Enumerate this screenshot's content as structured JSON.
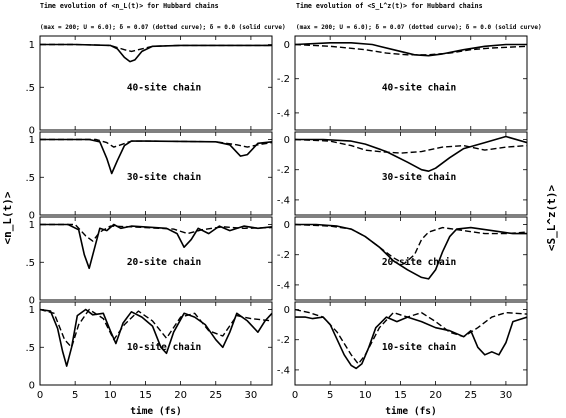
{
  "figure": {
    "left_title": "Time evolution of <n_L(t)> for Hubbard chains",
    "left_subtitle": "(max = 200; U = 6.0); δ = 0.07 (dotted curve); δ = 0.0 (solid curve)",
    "right_title": "Time evolution of <S_L^z(t)> for Hubbard chains",
    "right_subtitle": "(max = 200; U = 6.0); δ = 0.07 (dotted curve); δ = 0.0 (solid curve)",
    "left_ylabel": "<n_L(t)>",
    "right_ylabel": "<S_L^z(t)>",
    "xlabel": "time (fs)"
  },
  "chart_data": [
    {
      "type": "line",
      "column": "left",
      "title": "Time evolution of <n_L(t)> for Hubbard chains",
      "xlabel": "time (fs)",
      "ylabel": "<n_L(t)>",
      "xlim": [
        0,
        33
      ],
      "xticks": [
        0,
        5,
        10,
        15,
        20,
        25,
        30
      ],
      "ylim": [
        0,
        1.1
      ],
      "yticks": [
        0,
        0.5,
        1
      ],
      "panels": [
        {
          "label": "40-site chain",
          "series": [
            {
              "name": "δ = 0.0 (solid curve)",
              "style": "solid",
              "x": [
                0,
                5,
                10,
                11,
                12,
                12.8,
                13.5,
                14.5,
                16,
                20,
                33
              ],
              "y": [
                1.0,
                1.0,
                0.99,
                0.95,
                0.85,
                0.8,
                0.82,
                0.92,
                0.98,
                0.99,
                0.99
              ]
            },
            {
              "name": "δ = 0.07 (dotted curve)",
              "style": "dashed",
              "x": [
                0,
                5,
                10,
                12,
                13,
                14,
                16,
                20,
                33
              ],
              "y": [
                1.0,
                1.0,
                0.99,
                0.94,
                0.92,
                0.94,
                0.98,
                0.99,
                0.99
              ]
            }
          ]
        },
        {
          "label": "30-site chain",
          "series": [
            {
              "name": "δ = 0.0 (solid curve)",
              "style": "solid",
              "x": [
                0,
                7,
                8.5,
                9.5,
                10.2,
                11,
                12,
                13,
                15,
                25,
                27,
                28.5,
                29.5,
                31,
                33
              ],
              "y": [
                1.0,
                1.0,
                0.97,
                0.75,
                0.55,
                0.72,
                0.92,
                0.98,
                0.98,
                0.97,
                0.93,
                0.78,
                0.8,
                0.95,
                0.97
              ]
            },
            {
              "name": "δ = 0.07 (dotted curve)",
              "style": "dashed",
              "x": [
                0,
                8,
                9.5,
                10.5,
                11.5,
                13,
                16,
                25,
                28,
                29.5,
                31,
                33
              ],
              "y": [
                1.0,
                1.0,
                0.96,
                0.9,
                0.93,
                0.98,
                0.98,
                0.97,
                0.93,
                0.9,
                0.93,
                0.96
              ]
            }
          ]
        },
        {
          "label": "20-site chain",
          "series": [
            {
              "name": "δ = 0.0 (solid curve)",
              "style": "solid",
              "x": [
                0,
                4,
                5.5,
                6.3,
                7,
                7.8,
                8.5,
                9.5,
                10.5,
                11.5,
                13,
                18,
                19.5,
                20.5,
                21.5,
                22.5,
                24,
                25.5,
                27,
                29,
                31,
                33
              ],
              "y": [
                1.0,
                1.0,
                0.93,
                0.6,
                0.42,
                0.7,
                0.95,
                0.92,
                1.0,
                0.95,
                0.98,
                0.95,
                0.88,
                0.7,
                0.8,
                0.95,
                0.88,
                0.98,
                0.92,
                0.98,
                0.95,
                0.97
              ]
            },
            {
              "name": "δ = 0.07 (dotted curve)",
              "style": "dashed",
              "x": [
                0,
                5,
                6.5,
                7.5,
                8.5,
                10,
                13,
                19,
                21,
                23,
                26,
                29,
                33
              ],
              "y": [
                1.0,
                1.0,
                0.85,
                0.78,
                0.9,
                0.98,
                0.97,
                0.94,
                0.88,
                0.93,
                0.97,
                0.95,
                0.96
              ]
            }
          ]
        },
        {
          "label": "10-site chain",
          "series": [
            {
              "name": "δ = 0.0 (solid curve)",
              "style": "solid",
              "x": [
                0,
                1.5,
                2.5,
                3.2,
                3.8,
                4.5,
                5.3,
                6.5,
                7.5,
                9,
                10,
                10.8,
                11.8,
                13,
                14.5,
                16,
                17.2,
                18,
                19,
                20.5,
                22,
                23.5,
                25,
                26,
                27,
                28,
                29.5,
                31,
                32,
                33
              ],
              "y": [
                1.0,
                0.98,
                0.75,
                0.45,
                0.25,
                0.5,
                0.92,
                1.0,
                0.93,
                0.95,
                0.72,
                0.55,
                0.82,
                0.97,
                0.9,
                0.78,
                0.5,
                0.42,
                0.7,
                0.95,
                0.9,
                0.8,
                0.6,
                0.5,
                0.7,
                0.95,
                0.85,
                0.7,
                0.85,
                0.95
              ]
            },
            {
              "name": "δ = 0.07 (dotted curve)",
              "style": "dashed",
              "x": [
                0,
                2,
                3.5,
                4.5,
                5.5,
                7,
                9,
                10.5,
                12,
                14,
                16,
                18,
                20,
                22,
                24,
                26,
                28,
                30,
                33
              ],
              "y": [
                1.0,
                0.95,
                0.6,
                0.5,
                0.8,
                1.0,
                0.88,
                0.6,
                0.8,
                0.98,
                0.85,
                0.62,
                0.9,
                0.95,
                0.72,
                0.65,
                0.92,
                0.88,
                0.85
              ]
            }
          ]
        }
      ]
    },
    {
      "type": "line",
      "column": "right",
      "title": "Time evolution of <S_L^z(t)> for Hubbard chains",
      "xlabel": "time (fs)",
      "ylabel": "<S_L^z(t)>",
      "xlim": [
        0,
        33
      ],
      "xticks": [
        0,
        5,
        10,
        15,
        20,
        25,
        30
      ],
      "ylim": [
        -0.5,
        0.05
      ],
      "yticks": [
        -0.4,
        -0.2,
        0
      ],
      "panels": [
        {
          "label": "40-site chain",
          "series": [
            {
              "name": "δ = 0.0 (solid curve)",
              "style": "solid",
              "x": [
                0,
                5,
                8,
                11,
                14,
                17,
                19,
                21,
                24,
                27,
                30,
                33
              ],
              "y": [
                0.0,
                0.01,
                0.01,
                0.0,
                -0.03,
                -0.06,
                -0.065,
                -0.055,
                -0.03,
                -0.01,
                0.0,
                0.0
              ]
            },
            {
              "name": "δ = 0.07 (dotted curve)",
              "style": "dashed",
              "x": [
                0,
                5,
                10,
                13,
                16,
                19,
                22,
                25,
                28,
                33
              ],
              "y": [
                0.0,
                -0.01,
                -0.03,
                -0.05,
                -0.06,
                -0.06,
                -0.05,
                -0.03,
                -0.02,
                -0.01
              ]
            }
          ]
        },
        {
          "label": "30-site chain",
          "series": [
            {
              "name": "δ = 0.0 (solid curve)",
              "style": "solid",
              "x": [
                0,
                4,
                8,
                10,
                13,
                16,
                18,
                19,
                20,
                22,
                24,
                27,
                30,
                33
              ],
              "y": [
                0.0,
                0.0,
                -0.01,
                -0.03,
                -0.08,
                -0.15,
                -0.2,
                -0.21,
                -0.19,
                -0.12,
                -0.06,
                -0.02,
                0.02,
                -0.02
              ]
            },
            {
              "name": "δ = 0.07 (dotted curve)",
              "style": "dashed",
              "x": [
                0,
                5,
                8,
                10,
                12,
                15,
                18,
                21,
                24,
                27,
                30,
                33
              ],
              "y": [
                0.0,
                -0.01,
                -0.04,
                -0.07,
                -0.08,
                -0.09,
                -0.08,
                -0.05,
                -0.04,
                -0.07,
                -0.05,
                -0.04
              ]
            }
          ]
        },
        {
          "label": "20-site chain",
          "series": [
            {
              "name": "δ = 0.0 (solid curve)",
              "style": "solid",
              "x": [
                0,
                3,
                6,
                8,
                10,
                12,
                14,
                16,
                18,
                19,
                20,
                21,
                22,
                23,
                25,
                28,
                31,
                33
              ],
              "y": [
                0.0,
                0.0,
                -0.01,
                -0.03,
                -0.08,
                -0.15,
                -0.24,
                -0.3,
                -0.35,
                -0.36,
                -0.3,
                -0.18,
                -0.08,
                -0.03,
                -0.02,
                -0.04,
                -0.06,
                -0.06
              ]
            },
            {
              "name": "δ = 0.07 (dotted curve)",
              "style": "dashed",
              "x": [
                0,
                5,
                8,
                10,
                12,
                14,
                15.5,
                17,
                18,
                19,
                21,
                24,
                27,
                30,
                33
              ],
              "y": [
                0.0,
                -0.01,
                -0.03,
                -0.08,
                -0.15,
                -0.22,
                -0.26,
                -0.2,
                -0.1,
                -0.05,
                -0.02,
                -0.04,
                -0.06,
                -0.06,
                -0.05
              ]
            }
          ]
        },
        {
          "label": "10-site chain",
          "series": [
            {
              "name": "δ = 0.0 (solid curve)",
              "style": "solid",
              "x": [
                0,
                1.5,
                2.5,
                4,
                5,
                6,
                7,
                8,
                8.7,
                9.5,
                10.5,
                11.5,
                13,
                14.5,
                16,
                18,
                20,
                22,
                24,
                25,
                26,
                27,
                28,
                29,
                30,
                31,
                33
              ],
              "y": [
                -0.05,
                -0.05,
                -0.06,
                -0.05,
                -0.1,
                -0.2,
                -0.3,
                -0.37,
                -0.39,
                -0.36,
                -0.25,
                -0.12,
                -0.05,
                -0.08,
                -0.05,
                -0.08,
                -0.12,
                -0.14,
                -0.18,
                -0.14,
                -0.25,
                -0.3,
                -0.28,
                -0.3,
                -0.22,
                -0.08,
                -0.05
              ]
            },
            {
              "name": "δ = 0.07 (dotted curve)",
              "style": "dashed",
              "x": [
                0,
                2,
                4,
                6,
                8,
                9,
                10,
                12,
                14,
                16,
                18,
                20,
                22,
                24,
                26,
                28,
                30,
                33
              ],
              "y": [
                0.0,
                -0.02,
                -0.05,
                -0.15,
                -0.3,
                -0.36,
                -0.3,
                -0.12,
                -0.02,
                -0.05,
                -0.02,
                -0.08,
                -0.15,
                -0.18,
                -0.12,
                -0.05,
                -0.02,
                -0.03
              ]
            }
          ]
        }
      ]
    }
  ]
}
